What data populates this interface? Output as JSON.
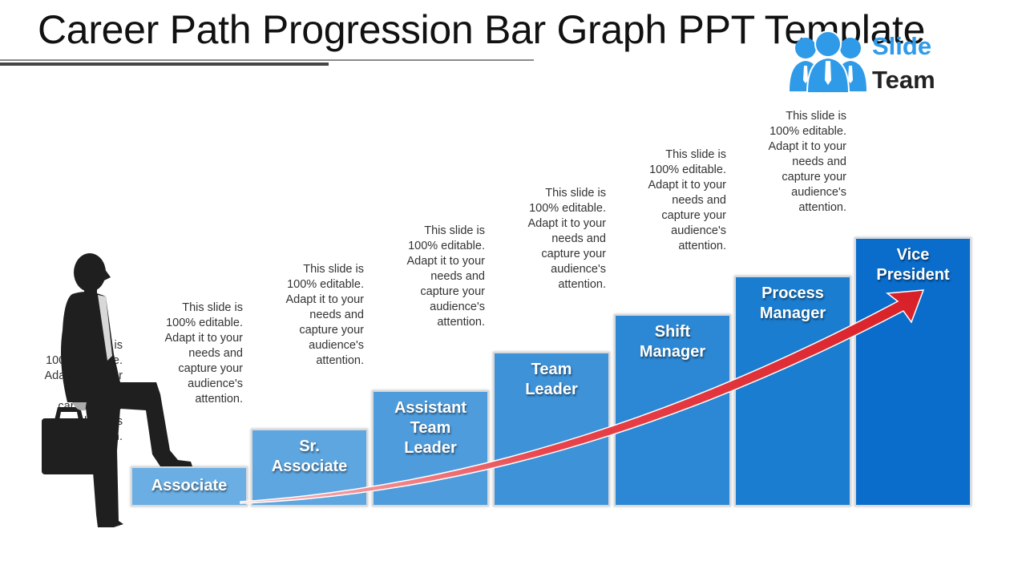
{
  "title": "Career Path Progression Bar Graph PPT Template",
  "logo": {
    "line1": "Slide",
    "line2": "Team",
    "icon": "people-group-icon",
    "color": "#2f9be8"
  },
  "description_text": "This slide is 100% editable. Adapt it to your needs and capture your audience's attention.",
  "steps": [
    {
      "label": "Associate",
      "color": "#6aaee3",
      "desc_lines": [
        "This slide is",
        "100% editable.",
        "Adapt it to your",
        "needs and",
        "capture your",
        "audience's",
        "attention."
      ]
    },
    {
      "label": "Sr. Associate",
      "color": "#5ea6e0",
      "desc_lines": [
        "This slide is",
        "100% editable.",
        "Adapt it to your",
        "needs and",
        "capture your",
        "audience's",
        "attention."
      ]
    },
    {
      "label": "Assistant Team Leader",
      "color": "#4e9cdc",
      "desc_lines": [
        "This slide is",
        "100% editable.",
        "Adapt it to your",
        "needs and",
        "capture your",
        "audience's",
        "attention."
      ]
    },
    {
      "label": "Team Leader",
      "color": "#3d92d8",
      "desc_lines": [
        "This slide is",
        "100% editable.",
        "Adapt it to your",
        "needs and",
        "capture your",
        "audience's",
        "attention."
      ]
    },
    {
      "label": "Shift Manager",
      "color": "#2c88d4",
      "desc_lines": [
        "This slide is",
        "100% editable.",
        "Adapt it to your",
        "needs and",
        "capture your",
        "audience's",
        "attention."
      ]
    },
    {
      "label": "Process Manager",
      "color": "#1b7dd0",
      "desc_lines": [
        "This slide is",
        "100% editable.",
        "Adapt it to your",
        "needs and",
        "capture your",
        "audience's",
        "attention."
      ]
    },
    {
      "label": "Vice President",
      "color": "#0a6ccb",
      "desc_lines": [
        "This slide is",
        "100% editable.",
        "Adapt it to your",
        "needs and",
        "capture your",
        "audience's",
        "attention."
      ]
    }
  ],
  "arrow_color": "#e0242c",
  "figure": "businessman-climbing-stairs-silhouette"
}
